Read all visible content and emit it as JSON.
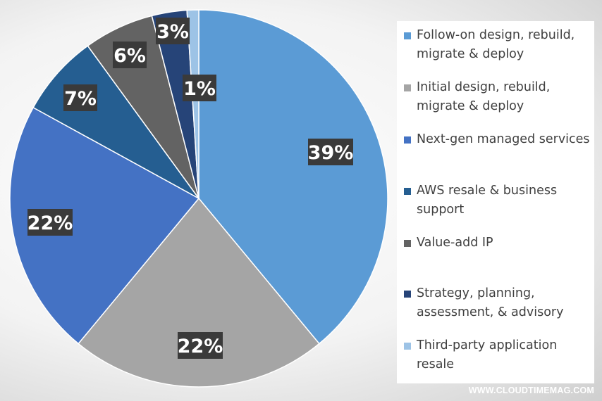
{
  "chart_data": {
    "type": "pie",
    "title": "",
    "slices": [
      {
        "label": "Follow-on design, rebuild, migrate & deploy",
        "value": 39,
        "value_label": "39%",
        "color": "#5b9bd5"
      },
      {
        "label": "Initial design, rebuild, migrate & deploy",
        "value": 22,
        "value_label": "22%",
        "color": "#a5a5a5"
      },
      {
        "label": "Next-gen managed services",
        "value": 22,
        "value_label": "22%",
        "color": "#4472c4"
      },
      {
        "label": "AWS resale & business support",
        "value": 7,
        "value_label": "7%",
        "color": "#255e91"
      },
      {
        "label": "Value-add IP",
        "value": 6,
        "value_label": "6%",
        "color": "#636363"
      },
      {
        "label": "Strategy, planning, assessment, & advisory",
        "value": 3,
        "value_label": "3%",
        "color": "#264478"
      },
      {
        "label": "Third-party application resale",
        "value": 1,
        "value_label": "1%",
        "color": "#9dc3e6"
      }
    ],
    "legend_position": "right"
  },
  "legend": {
    "items": [
      "Follow-on design, rebuild, migrate & deploy",
      "Initial design, rebuild, migrate & deploy",
      "Next-gen managed services",
      "AWS resale & business support",
      "Value-add IP",
      "Strategy, planning, assessment, & advisory",
      "Third-party application resale"
    ]
  },
  "watermark": "WWW.CLOUDTIMEMAG.COM"
}
